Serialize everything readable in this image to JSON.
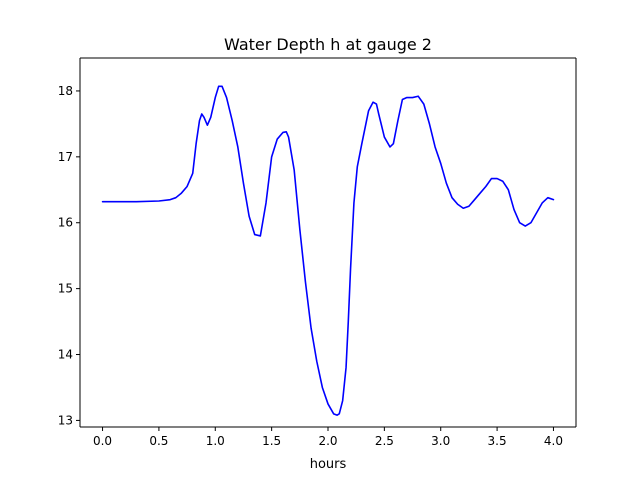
{
  "chart_data": {
    "type": "line",
    "title": "Water Depth h at gauge 2",
    "xlabel": "hours",
    "ylabel": "",
    "xlim": [
      -0.2,
      4.2
    ],
    "ylim": [
      12.9,
      18.5
    ],
    "xticks": [
      0.0,
      0.5,
      1.0,
      1.5,
      2.0,
      2.5,
      3.0,
      3.5,
      4.0
    ],
    "xtick_labels": [
      "0.0",
      "0.5",
      "1.0",
      "1.5",
      "2.0",
      "2.5",
      "3.0",
      "3.5",
      "4.0"
    ],
    "yticks": [
      13,
      14,
      15,
      16,
      17,
      18
    ],
    "ytick_labels": [
      "13",
      "14",
      "15",
      "16",
      "17",
      "18"
    ],
    "grid": false,
    "legend": "none",
    "series": [
      {
        "color": "#0000ff",
        "x": [
          0.0,
          0.3,
          0.5,
          0.6,
          0.65,
          0.7,
          0.75,
          0.8,
          0.83,
          0.86,
          0.88,
          0.9,
          0.93,
          0.96,
          1.0,
          1.03,
          1.06,
          1.1,
          1.15,
          1.2,
          1.25,
          1.3,
          1.35,
          1.4,
          1.45,
          1.5,
          1.55,
          1.6,
          1.63,
          1.65,
          1.7,
          1.75,
          1.8,
          1.85,
          1.9,
          1.95,
          2.0,
          2.05,
          2.08,
          2.1,
          2.13,
          2.16,
          2.18,
          2.2,
          2.23,
          2.26,
          2.3,
          2.33,
          2.36,
          2.4,
          2.43,
          2.45,
          2.5,
          2.55,
          2.58,
          2.62,
          2.66,
          2.7,
          2.75,
          2.8,
          2.85,
          2.9,
          2.95,
          3.0,
          3.05,
          3.1,
          3.15,
          3.2,
          3.25,
          3.3,
          3.35,
          3.4,
          3.45,
          3.5,
          3.55,
          3.6,
          3.65,
          3.7,
          3.75,
          3.8,
          3.85,
          3.9,
          3.95,
          4.0
        ],
        "y": [
          16.32,
          16.32,
          16.33,
          16.35,
          16.38,
          16.45,
          16.55,
          16.75,
          17.2,
          17.55,
          17.65,
          17.6,
          17.48,
          17.6,
          17.9,
          18.07,
          18.07,
          17.9,
          17.55,
          17.15,
          16.6,
          16.1,
          15.82,
          15.8,
          16.3,
          17.0,
          17.27,
          17.37,
          17.38,
          17.3,
          16.8,
          15.9,
          15.1,
          14.4,
          13.9,
          13.5,
          13.25,
          13.1,
          13.08,
          13.1,
          13.3,
          13.8,
          14.5,
          15.3,
          16.3,
          16.85,
          17.2,
          17.45,
          17.7,
          17.83,
          17.8,
          17.65,
          17.3,
          17.15,
          17.2,
          17.55,
          17.87,
          17.9,
          17.9,
          17.92,
          17.8,
          17.5,
          17.15,
          16.9,
          16.6,
          16.38,
          16.28,
          16.22,
          16.25,
          16.35,
          16.45,
          16.55,
          16.67,
          16.67,
          16.63,
          16.5,
          16.2,
          16.0,
          15.95,
          16.0,
          16.15,
          16.3,
          16.38,
          16.35
        ]
      }
    ]
  }
}
